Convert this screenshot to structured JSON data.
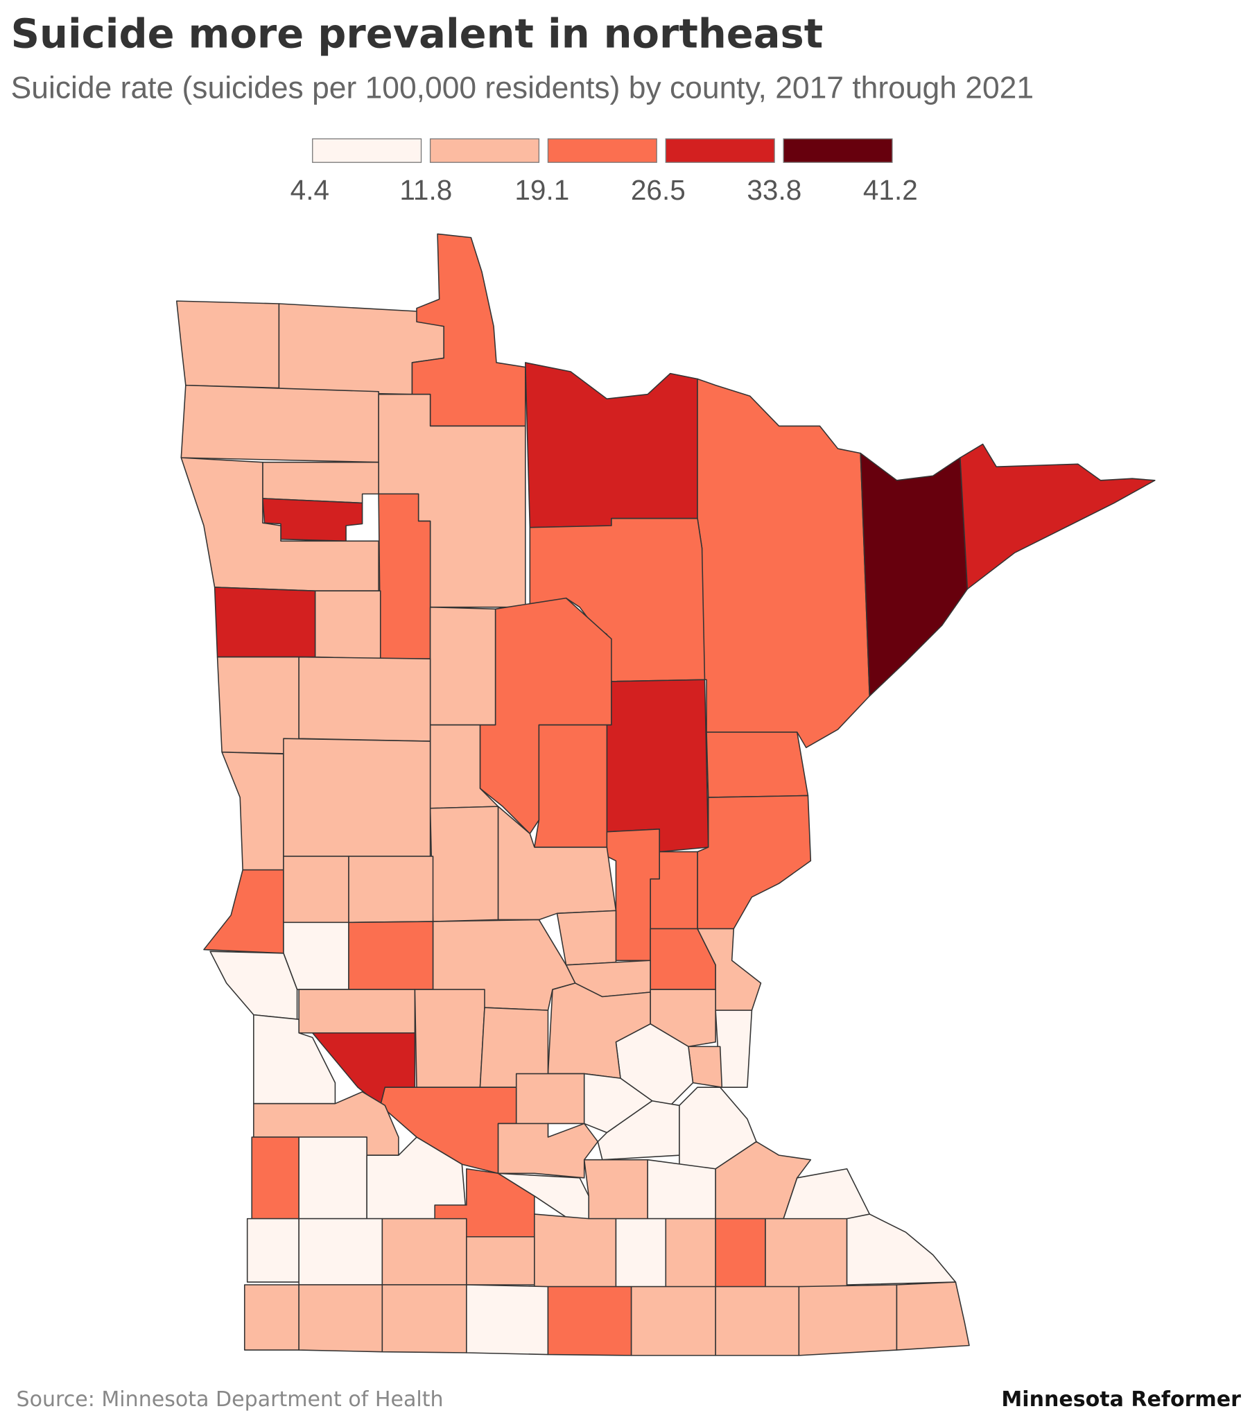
{
  "header": {
    "title": "Suicide more prevalent in northeast",
    "subtitle": "Suicide rate (suicides per 100,000 residents) by county, 2017 through 2021"
  },
  "legend": {
    "breaks": [
      "4.4",
      "11.8",
      "19.1",
      "26.5",
      "33.8",
      "41.2"
    ],
    "colors": [
      "#fff5f0",
      "#fcbba1",
      "#fb6f50",
      "#d32020",
      "#67000d"
    ]
  },
  "footer": {
    "source": "Source: Minnesota Department of Health",
    "brand": "Minnesota Reformer"
  },
  "chart_data": {
    "type": "choropleth",
    "region": "Minnesota counties",
    "bins": [
      [
        4.4,
        11.8
      ],
      [
        11.8,
        19.1
      ],
      [
        19.1,
        26.5
      ],
      [
        26.5,
        33.8
      ],
      [
        33.8,
        41.2
      ]
    ],
    "county_bin_index": [
      1,
      1,
      2,
      1,
      1,
      1,
      3,
      1,
      2,
      3,
      1,
      3,
      2,
      4,
      3,
      2,
      1,
      2,
      3,
      2,
      2,
      2,
      2,
      2,
      1,
      1,
      1,
      1,
      2,
      1,
      1,
      1,
      0,
      1,
      0,
      1,
      1,
      1,
      1,
      1,
      1,
      2,
      1,
      1,
      0,
      2,
      0,
      1,
      1,
      1,
      0,
      3,
      2,
      1,
      0,
      1,
      2,
      0,
      0,
      2,
      1,
      0,
      0,
      0,
      1,
      0,
      1,
      0,
      0,
      0,
      1,
      1,
      1,
      0,
      1,
      2,
      1,
      0,
      1,
      1,
      1,
      0,
      2,
      1,
      1,
      1,
      1
    ]
  }
}
